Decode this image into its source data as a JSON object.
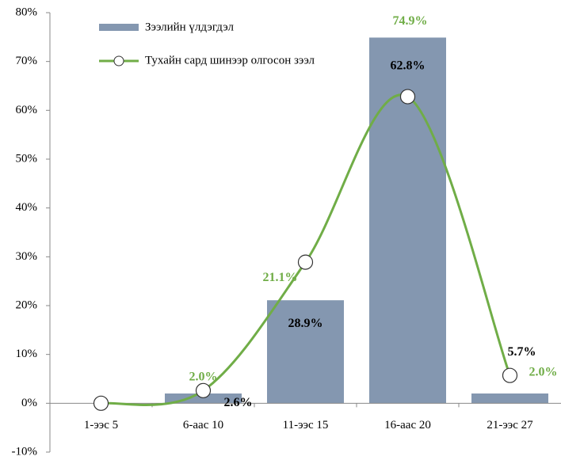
{
  "chart_data": {
    "type": "bar_line",
    "categories": [
      "1-ээс 5",
      "6-аас 10",
      "11-ээс 15",
      "16-аас 20",
      "21-ээс 27"
    ],
    "series": [
      {
        "name": "Зээлийн үлдэгдэл",
        "type": "bar",
        "color": "#8497b0",
        "label_color": "#70ad47",
        "values": [
          0,
          2.0,
          21.1,
          74.9,
          2.0
        ],
        "value_labels": [
          null,
          "2.0%",
          "21.1%",
          "74.9%",
          "2.0%"
        ]
      },
      {
        "name": "Тухайн сард шинээр олгосон зээл",
        "type": "line",
        "color": "#70ad47",
        "label_color": "#000000",
        "values": [
          0,
          2.6,
          28.9,
          62.8,
          5.7
        ],
        "value_labels": [
          null,
          "2.6%",
          "28.9%",
          "62.8%",
          "5.7%"
        ]
      }
    ],
    "ylim": [
      -10,
      80
    ],
    "yticks": [
      {
        "value": -10,
        "label": "-10%"
      },
      {
        "value": 0,
        "label": "0%"
      },
      {
        "value": 10,
        "label": "10%"
      },
      {
        "value": 20,
        "label": "20%"
      },
      {
        "value": 30,
        "label": "30%"
      },
      {
        "value": 40,
        "label": "40%"
      },
      {
        "value": 50,
        "label": "50%"
      },
      {
        "value": 60,
        "label": "60%"
      },
      {
        "value": 70,
        "label": "70%"
      },
      {
        "value": 80,
        "label": "80%"
      }
    ],
    "smooth": true
  }
}
